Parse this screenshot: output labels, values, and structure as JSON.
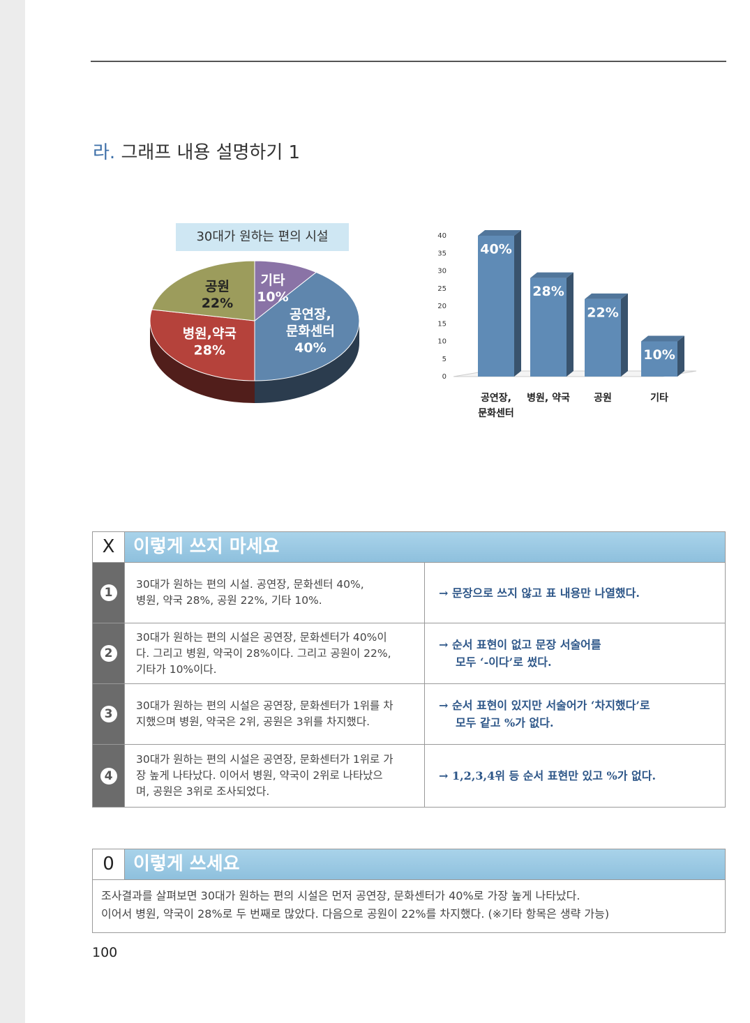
{
  "section_title": {
    "prefix": "라.",
    "text": "그래프 내용 설명하기 1"
  },
  "chart_data": [
    {
      "type": "pie",
      "title": "30대가 원하는 편의 시설",
      "categories": [
        [
          "공연장,",
          "문화센터"
        ],
        [
          "병원,약국"
        ],
        [
          "공원"
        ],
        [
          "기타"
        ]
      ],
      "values": [
        40,
        28,
        22,
        10
      ],
      "value_labels": [
        "40%",
        "28%",
        "22%",
        "10%"
      ],
      "colors": [
        "#5f86ad",
        "#b5423b",
        "#9c9c5c",
        "#8a73a6"
      ]
    },
    {
      "type": "bar",
      "categories": [
        [
          "공연장,",
          "문화센터"
        ],
        [
          "병원, 약국"
        ],
        [
          "공원"
        ],
        [
          "기타"
        ]
      ],
      "values": [
        40,
        28,
        22,
        10
      ],
      "value_labels": [
        "40%",
        "28%",
        "22%",
        "10%"
      ],
      "color": "#5f8bb6",
      "ylim": [
        0,
        40
      ],
      "yticks": [
        0,
        5,
        10,
        15,
        20,
        25,
        30,
        35,
        40
      ]
    }
  ],
  "bad_table": {
    "marker": "X",
    "title": "이렇게 쓰지 마세요",
    "rows": [
      {
        "number": "1",
        "text": "30대가 원하는 편의 시설. 공연장, 문화센터 40%,\n병원, 약국 28%, 공원 22%, 기타 10%.",
        "comment": "→ 문장으로 쓰지 않고 표 내용만 나열했다."
      },
      {
        "number": "2",
        "text": "30대가 원하는 편의 시설은 공연장, 문화센터가 40%이\n다. 그리고 병원, 약국이 28%이다. 그리고 공원이 22%,\n기타가 10%이다.",
        "comment": "→ 순서 표현이 없고 문장 서술어를\n모두 ‘-이다’로 썼다."
      },
      {
        "number": "3",
        "text": "30대가 원하는 편의 시설은 공연장, 문화센터가 1위를 차\n지했으며 병원, 약국은 2위, 공원은 3위를 차지했다.",
        "comment": "→ 순서 표현이 있지만 서술어가 ‘차지했다’로\n모두 같고 %가 없다."
      },
      {
        "number": "4",
        "text": "30대가 원하는 편의 시설은 공연장, 문화센터가 1위로 가\n장 높게 나타났다. 이어서 병원, 약국이 2위로 나타났으\n며, 공원은 3위로 조사되었다.",
        "comment": "→ 1,2,3,4위 등 순서 표현만 있고 %가 없다."
      }
    ]
  },
  "good_table": {
    "marker": "0",
    "title": "이렇게 쓰세요",
    "text": "조사결과를 살펴보면 30대가 원하는 편의 시설은 먼저 공연장, 문화센터가 40%로 가장 높게 나타났다.\n이어서 병원, 약국이 28%로 두 번째로 많았다. 다음으로 공원이 22%를 차지했다. (※기타 항목은 생략 가능)"
  },
  "page_number": "100"
}
